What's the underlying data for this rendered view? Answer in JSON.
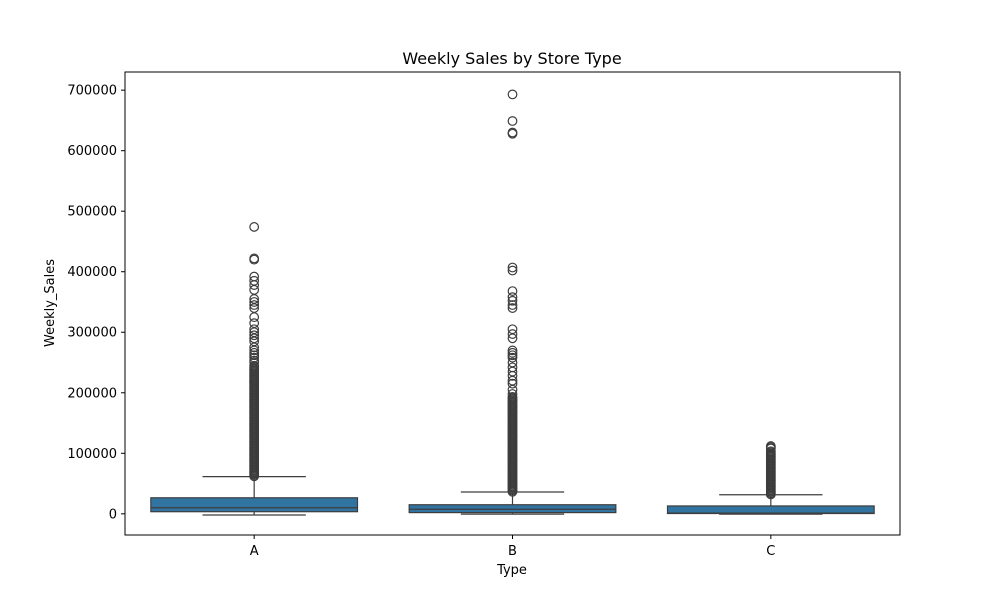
{
  "chart_data": {
    "type": "box",
    "title": "Weekly Sales by Store Type",
    "xlabel": "Type",
    "ylabel": "Weekly_Sales",
    "ylim": [
      -35000,
      730000
    ],
    "y_ticks": [
      0,
      100000,
      200000,
      300000,
      400000,
      500000,
      600000,
      700000
    ],
    "y_tick_labels": [
      "0",
      "100000",
      "200000",
      "300000",
      "400000",
      "500000",
      "600000",
      "700000"
    ],
    "categories": [
      "A",
      "B",
      "C"
    ],
    "box_color": "#3274a1",
    "line_color": "#3d3d3d",
    "grid": false,
    "boxes": [
      {
        "category": "A",
        "whisker_low": -2000,
        "q1": 3500,
        "median": 10000,
        "q3": 26500,
        "whisker_high": 61500,
        "outliers_dense_range": [
          62000,
          245000
        ],
        "outliers": [
          250000,
          253000,
          258000,
          262000,
          266000,
          270000,
          275000,
          285000,
          290000,
          295000,
          300000,
          305000,
          315000,
          325000,
          340000,
          345000,
          350000,
          355000,
          370000,
          378000,
          385000,
          392000,
          420000,
          422000,
          474000
        ]
      },
      {
        "category": "B",
        "whisker_low": -500,
        "q1": 2000,
        "median": 7500,
        "q3": 15000,
        "whisker_high": 36000,
        "outliers_dense_range": [
          36500,
          195000
        ],
        "outliers": [
          198000,
          205000,
          215000,
          220000,
          228000,
          235000,
          242000,
          250000,
          258000,
          262000,
          266000,
          270000,
          290000,
          297000,
          305000,
          340000,
          345000,
          352000,
          358000,
          368000,
          402000,
          407000,
          628000,
          630000,
          649000,
          693000
        ]
      },
      {
        "category": "C",
        "whisker_low": -500,
        "q1": 500,
        "median": 1200,
        "q3": 13000,
        "whisker_high": 31500,
        "outliers_dense_range": [
          32000,
          105000
        ],
        "outliers": [
          108000,
          110000,
          112000
        ]
      }
    ]
  }
}
